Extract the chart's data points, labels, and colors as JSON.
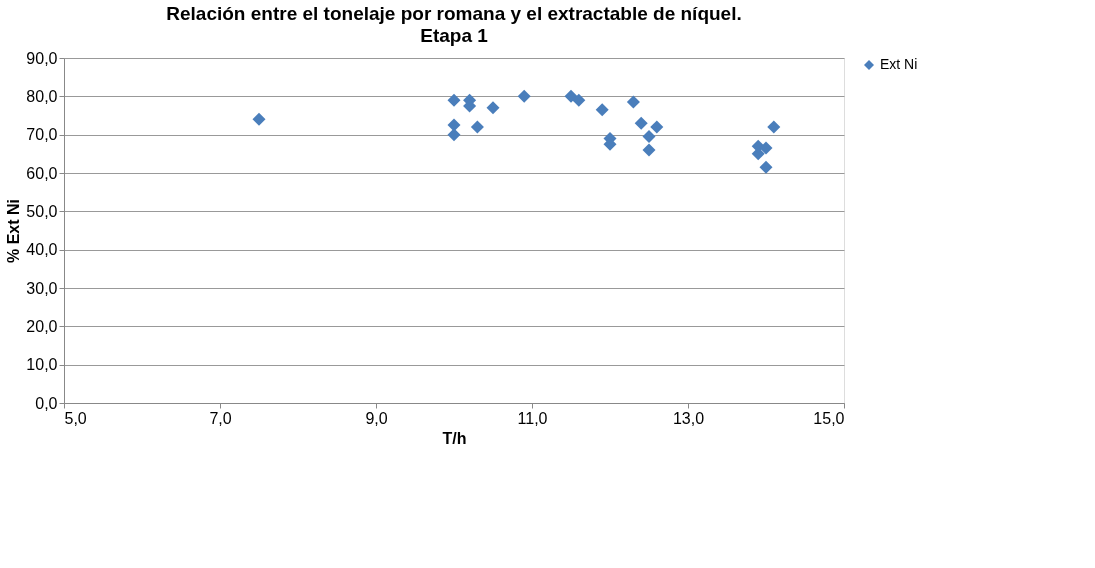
{
  "chart_data": {
    "type": "scatter",
    "title": "Relación entre el tonelaje por romana y el extractable de níquel. Etapa 1",
    "xlabel": "T/h",
    "ylabel": "% Ext Ni",
    "series": [
      {
        "name": "Ext Ni",
        "color": "#4a7ebb",
        "x": [
          7.5,
          10.0,
          10.0,
          10.0,
          10.2,
          10.2,
          10.3,
          10.5,
          10.9,
          11.5,
          11.6,
          11.9,
          12.3,
          12.4,
          12.0,
          12.0,
          12.6,
          12.5,
          12.5,
          13.9,
          13.9,
          14.0,
          14.1,
          14.0
        ],
        "values": [
          74.0,
          79.0,
          72.5,
          70.0,
          79.0,
          77.5,
          72.0,
          77.0,
          80.0,
          80.0,
          79.0,
          76.5,
          78.5,
          73.0,
          69.0,
          67.5,
          72.0,
          69.5,
          66.0,
          65.0,
          67.0,
          61.5,
          72.0,
          66.5
        ]
      }
    ],
    "xlim": [
      5.0,
      15.0
    ],
    "ylim": [
      0.0,
      90.0
    ],
    "xticks": [
      {
        "value": 5,
        "label": "5,0"
      },
      {
        "value": 7,
        "label": "7,0"
      },
      {
        "value": 9,
        "label": "9,0"
      },
      {
        "value": 11,
        "label": "11,0"
      },
      {
        "value": 13,
        "label": "13,0"
      },
      {
        "value": 15,
        "label": "15,0"
      }
    ],
    "yticks": [
      {
        "value": 0,
        "label": "0,0"
      },
      {
        "value": 10,
        "label": "10,0"
      },
      {
        "value": 20,
        "label": "20,0"
      },
      {
        "value": 30,
        "label": "30,0"
      },
      {
        "value": 40,
        "label": "40,0"
      },
      {
        "value": 50,
        "label": "50,0"
      },
      {
        "value": 60,
        "label": "60,0"
      },
      {
        "value": 70,
        "label": "70,0"
      },
      {
        "value": 80,
        "label": "80,0"
      },
      {
        "value": 90,
        "label": "90,0"
      }
    ],
    "grid": "y",
    "legend": "right",
    "marker": "diamond"
  }
}
